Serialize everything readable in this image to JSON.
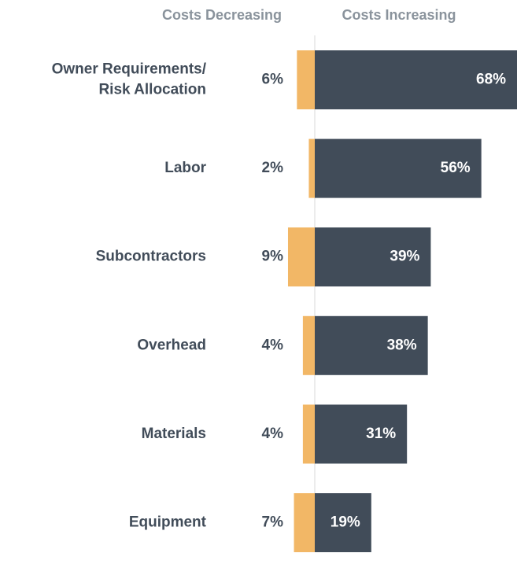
{
  "chart_data": {
    "type": "diverging-bar",
    "categories": [
      "Owner Requirements/\nRisk Allocation",
      "Labor",
      "Subcontractors",
      "Overhead",
      "Materials",
      "Equipment"
    ],
    "series": [
      {
        "name": "Costs Decreasing",
        "color": "#f2b766",
        "values": [
          6,
          2,
          9,
          4,
          4,
          7
        ],
        "value_labels": [
          "6%",
          "2%",
          "9%",
          "4%",
          "4%",
          "7%"
        ]
      },
      {
        "name": "Costs Increasing",
        "color": "#414c59",
        "values": [
          68,
          56,
          39,
          38,
          31,
          19
        ],
        "value_labels": [
          "68%",
          "56%",
          "39%",
          "38%",
          "31%",
          "19%"
        ]
      }
    ]
  }
}
